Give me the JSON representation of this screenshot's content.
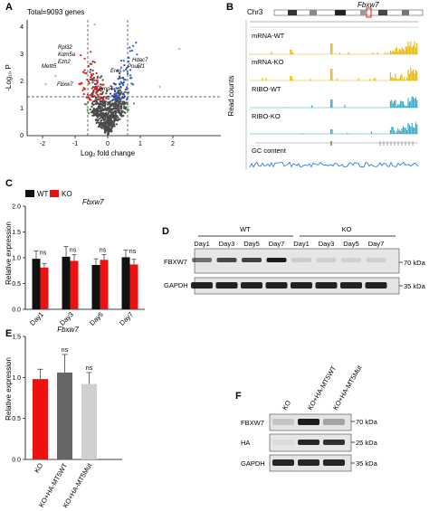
{
  "panels": {
    "a": "A",
    "b": "B",
    "c": "C",
    "d": "D",
    "e": "E",
    "f": "F"
  },
  "volcano": {
    "annotation": "Total=9093 genes",
    "xlabel": "Log₂ fold change",
    "ylabel": "-Log₁₀ P",
    "xticks": [
      "-2",
      "-1",
      "0",
      "1",
      "2"
    ],
    "yticks": [
      "0",
      "1",
      "2",
      "3",
      "4"
    ],
    "gene_labels": [
      "Rpl32",
      "Kdm5a",
      "Ezh2",
      "Mettl5",
      "Fbxw7",
      "Hdac7",
      "Eres",
      "Pou5f1",
      "Bmp4"
    ]
  },
  "tracks": {
    "chrom": "Chr3",
    "gene": "Fbxw7",
    "ylabel": "Read counts",
    "track_labels": [
      "mRNA-WT",
      "mRNA-KO",
      "RIBO-WT",
      "RIBO-KO",
      "GC content"
    ],
    "colors": {
      "mrna": "#e8b400",
      "ribo": "#2aa6c4",
      "gc": "#1f6fd8"
    }
  },
  "chart_c": {
    "gene": "Fbxw7",
    "legend": [
      "WT",
      "KO"
    ],
    "ylabel": "Relative expression",
    "yticks": [
      "0.0",
      "0.5",
      "1.0",
      "1.5",
      "2.0"
    ],
    "categories": [
      "Day1",
      "Day3",
      "Day5",
      "Day7"
    ],
    "sig": [
      "ns",
      "ns",
      "ns",
      "ns"
    ],
    "colors": {
      "wt": "#111111",
      "ko": "#ee1111"
    }
  },
  "chart_e": {
    "gene": "Fbxw7",
    "ylabel": "Relative expression",
    "yticks": [
      "0.0",
      "0.5",
      "1.0",
      "1.5"
    ],
    "categories": [
      "KO",
      "KO+HA-MT5WT",
      "KO+HA-MT5Mut"
    ],
    "sig": [
      "",
      "ns",
      "ns"
    ],
    "colors": [
      "#ee1111",
      "#666666",
      "#cfcfcf"
    ]
  },
  "blot_d": {
    "groups": [
      "WT",
      "KO"
    ],
    "lanes": [
      "Day1",
      "Day3",
      "Day5",
      "Day7",
      "Day1",
      "Day3",
      "Day5",
      "Day7"
    ],
    "rows": [
      "FBXW7",
      "GAPDH"
    ],
    "mw": [
      "70 kDa",
      "35 kDa"
    ]
  },
  "blot_f": {
    "lanes": [
      "KO",
      "KO+HA-MT5WT",
      "KO+HA-MT5Mut"
    ],
    "rows": [
      "FBXW7",
      "HA",
      "GAPDH"
    ],
    "mw": [
      "70 kDa",
      "25 kDa",
      "35 kDa"
    ]
  },
  "chart_data": [
    {
      "type": "bar",
      "title": "Fbxw7",
      "ylabel": "Relative expression",
      "ylim": [
        0,
        2.0
      ],
      "categories": [
        "Day1",
        "Day3",
        "Day5",
        "Day7"
      ],
      "series": [
        {
          "name": "WT",
          "values": [
            0.98,
            1.02,
            0.86,
            1.01
          ],
          "errors": [
            0.15,
            0.2,
            0.12,
            0.14
          ]
        },
        {
          "name": "KO",
          "values": [
            0.81,
            0.94,
            0.96,
            0.87
          ],
          "errors": [
            0.08,
            0.12,
            0.1,
            0.1
          ]
        }
      ],
      "annotations": [
        "ns",
        "ns",
        "ns",
        "ns"
      ],
      "legend": "top-left"
    },
    {
      "type": "bar",
      "title": "Fbxw7",
      "ylabel": "Relative expression",
      "ylim": [
        0,
        1.5
      ],
      "categories": [
        "KO",
        "KO+HA-MT5WT",
        "KO+HA-MT5Mut"
      ],
      "values": [
        0.98,
        1.06,
        0.92
      ],
      "errors": [
        0.12,
        0.22,
        0.14
      ],
      "annotations": [
        "",
        "ns",
        "ns"
      ]
    },
    {
      "type": "scatter",
      "annotation": "Total=9093 genes",
      "xlabel": "Log₂ fold change",
      "ylabel": "-Log₁₀ P",
      "xlim": [
        -2.5,
        2.5
      ],
      "ylim": [
        0,
        4.3
      ],
      "thresholds": {
        "x": [
          -0.58,
          0.58
        ],
        "y": 1.3
      }
    }
  ]
}
